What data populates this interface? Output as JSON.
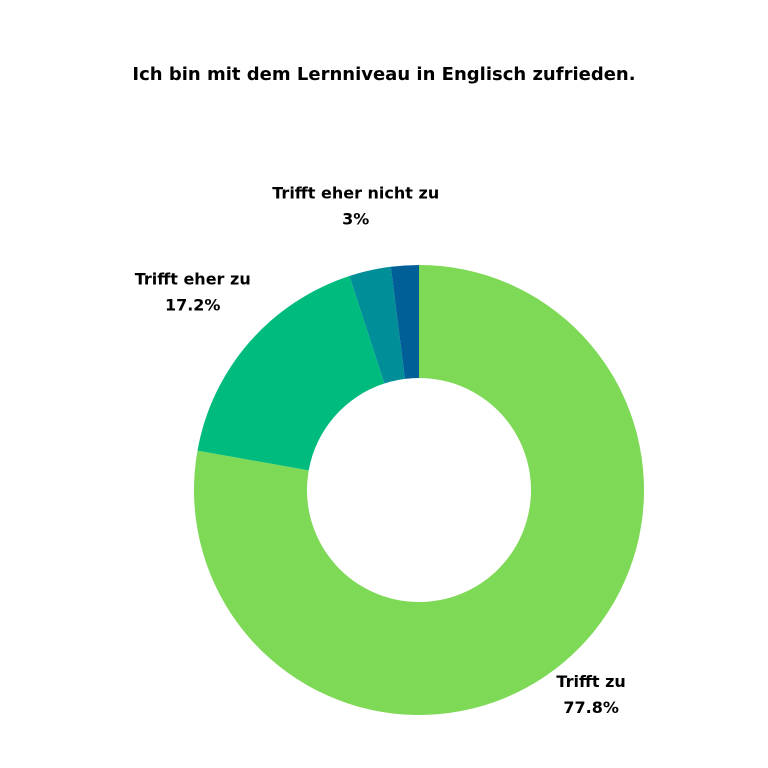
{
  "chart_data": {
    "type": "donut",
    "title": "Ich bin mit dem Lernniveau in Englisch zufrieden.",
    "categories": [
      "Trifft zu",
      "Trifft eher zu",
      "Trifft eher nicht zu",
      null
    ],
    "values": [
      77.8,
      17.2,
      3,
      2
    ],
    "value_labels": [
      "77.8%",
      "17.2%",
      "3%",
      null
    ],
    "colors": [
      "#7ed957",
      "#00bb7e",
      "#008e98",
      "#005f96"
    ]
  }
}
